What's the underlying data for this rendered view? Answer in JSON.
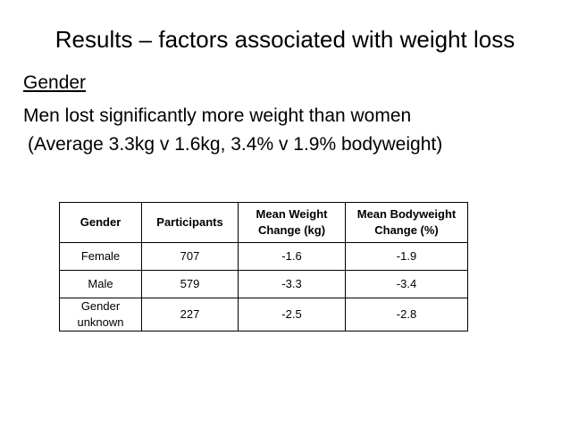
{
  "slide": {
    "title": "Results – factors associated with weight loss",
    "subheading": "Gender",
    "line1": "Men lost significantly more weight than women",
    "line2": "(Average 3.3kg v 1.6kg, 3.4% v 1.9% bodyweight)"
  },
  "table": {
    "headers": [
      "Gender",
      "Participants",
      "Mean Weight Change (kg)",
      "Mean Bodyweight Change (%)"
    ],
    "rows": [
      [
        "Female",
        "707",
        "-1.6",
        "-1.9"
      ],
      [
        "Male",
        "579",
        "-3.3",
        "-3.4"
      ],
      [
        "Gender unknown",
        "227",
        "-2.5",
        "-2.8"
      ]
    ]
  }
}
